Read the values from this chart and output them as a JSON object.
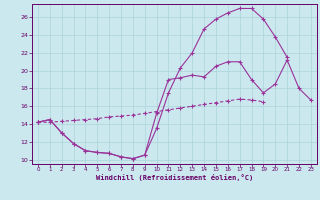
{
  "xlabel": "Windchill (Refroidissement éolien,°C)",
  "bg_color": "#cce8ef",
  "line_color": "#993399",
  "grid_color": "#aad4d9",
  "xlim": [
    -0.5,
    23.5
  ],
  "ylim": [
    9.5,
    27.5
  ],
  "yticks": [
    10,
    12,
    14,
    16,
    18,
    20,
    22,
    24,
    26
  ],
  "xticks": [
    0,
    1,
    2,
    3,
    4,
    5,
    6,
    7,
    8,
    9,
    10,
    11,
    12,
    13,
    14,
    15,
    16,
    17,
    18,
    19,
    20,
    21,
    22,
    23
  ],
  "line1_x": [
    0,
    1,
    2,
    3,
    4,
    5,
    6,
    7,
    8,
    9,
    10,
    11,
    12,
    13,
    14,
    15,
    16,
    17,
    18,
    19,
    20,
    21,
    22,
    23
  ],
  "line1_y": [
    14.2,
    14.5,
    13.0,
    11.8,
    11.0,
    10.8,
    10.7,
    10.3,
    10.1,
    10.5,
    15.2,
    19.0,
    19.2,
    19.5,
    19.3,
    20.5,
    21.0,
    21.0,
    19.0,
    17.5,
    18.5,
    21.2,
    18.0,
    16.7
  ],
  "line2_x": [
    0,
    1,
    2,
    3,
    4,
    5,
    6,
    7,
    8,
    9,
    10,
    11,
    12,
    13,
    14,
    15,
    16,
    17,
    18,
    19,
    20,
    21
  ],
  "line2_y": [
    14.2,
    14.5,
    13.0,
    11.8,
    11.0,
    10.8,
    10.7,
    10.3,
    10.1,
    10.5,
    13.5,
    17.5,
    20.3,
    22.0,
    24.7,
    25.8,
    26.5,
    27.0,
    27.0,
    25.8,
    23.8,
    21.5
  ],
  "line3_x": [
    0,
    1,
    2,
    3,
    4,
    5,
    6,
    7,
    8,
    9,
    10,
    11,
    12,
    13,
    14,
    15,
    16,
    17,
    18,
    19,
    20,
    21,
    22,
    23
  ],
  "line3_y": [
    14.2,
    14.2,
    14.3,
    14.4,
    14.5,
    14.6,
    14.8,
    14.9,
    15.0,
    15.2,
    15.4,
    15.6,
    15.8,
    16.0,
    16.2,
    16.4,
    16.6,
    16.8,
    16.7,
    16.5,
    null,
    null,
    null,
    null
  ]
}
